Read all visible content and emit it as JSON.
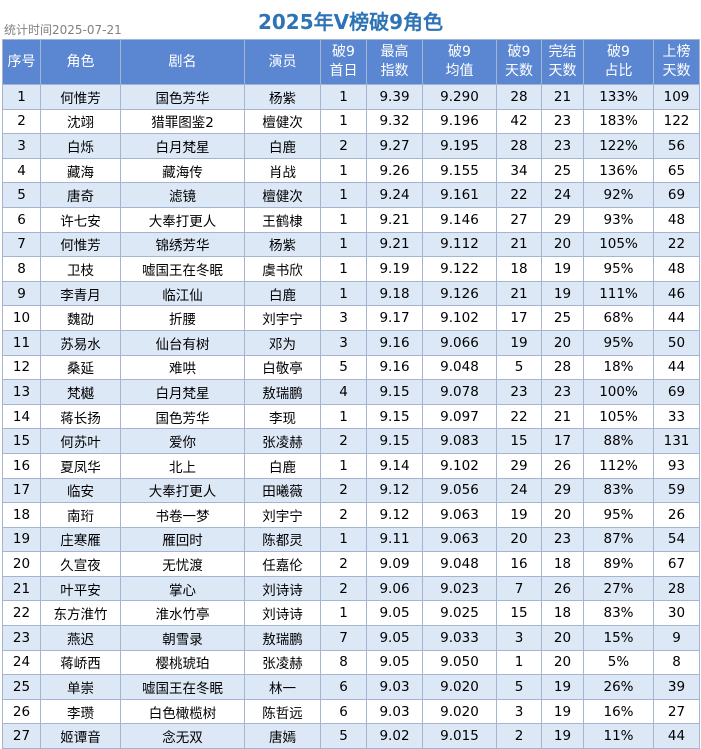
{
  "page_title": "2025年V榜破9角色",
  "stat_date": "统计时间2025-07-21",
  "colors": {
    "header_bg": "#5b87d2",
    "title": "#2e74b5",
    "odd_row": "#dde8f7",
    "border": "#a6b5cf"
  },
  "columns": [
    [
      "序号"
    ],
    [
      "角色"
    ],
    [
      "剧名"
    ],
    [
      "演员"
    ],
    [
      "破9",
      "首日"
    ],
    [
      "最高",
      "指数"
    ],
    [
      "破9",
      "均值"
    ],
    [
      "破9",
      "天数"
    ],
    [
      "完结",
      "天数"
    ],
    [
      "破9",
      "占比"
    ],
    [
      "上榜",
      "天数"
    ]
  ],
  "rows": [
    [
      "1",
      "何惟芳",
      "国色芳华",
      "杨紫",
      "1",
      "9.39",
      "9.290",
      "28",
      "21",
      "133%",
      "109"
    ],
    [
      "2",
      "沈翊",
      "猎罪图鉴2",
      "檀健次",
      "1",
      "9.32",
      "9.196",
      "42",
      "23",
      "183%",
      "122"
    ],
    [
      "3",
      "白烁",
      "白月梵星",
      "白鹿",
      "2",
      "9.27",
      "9.195",
      "28",
      "23",
      "122%",
      "56"
    ],
    [
      "4",
      "藏海",
      "藏海传",
      "肖战",
      "1",
      "9.26",
      "9.155",
      "34",
      "25",
      "136%",
      "65"
    ],
    [
      "5",
      "唐奇",
      "滤镜",
      "檀健次",
      "1",
      "9.24",
      "9.161",
      "22",
      "24",
      "92%",
      "69"
    ],
    [
      "6",
      "许七安",
      "大奉打更人",
      "王鹤棣",
      "1",
      "9.21",
      "9.146",
      "27",
      "29",
      "93%",
      "48"
    ],
    [
      "7",
      "何惟芳",
      "锦绣芳华",
      "杨紫",
      "1",
      "9.21",
      "9.112",
      "21",
      "20",
      "105%",
      "22"
    ],
    [
      "8",
      "卫枝",
      "嘘国王在冬眠",
      "虞书欣",
      "1",
      "9.19",
      "9.122",
      "18",
      "19",
      "95%",
      "48"
    ],
    [
      "9",
      "李青月",
      "临江仙",
      "白鹿",
      "1",
      "9.18",
      "9.126",
      "21",
      "19",
      "111%",
      "46"
    ],
    [
      "10",
      "魏劭",
      "折腰",
      "刘宇宁",
      "3",
      "9.17",
      "9.102",
      "17",
      "25",
      "68%",
      "44"
    ],
    [
      "11",
      "苏易水",
      "仙台有树",
      "邓为",
      "3",
      "9.16",
      "9.066",
      "19",
      "20",
      "95%",
      "50"
    ],
    [
      "12",
      "桑延",
      "难哄",
      "白敬亭",
      "5",
      "9.16",
      "9.048",
      "5",
      "28",
      "18%",
      "44"
    ],
    [
      "13",
      "梵樾",
      "白月梵星",
      "敖瑞鹏",
      "4",
      "9.15",
      "9.078",
      "23",
      "23",
      "100%",
      "69"
    ],
    [
      "14",
      "蒋长扬",
      "国色芳华",
      "李现",
      "1",
      "9.15",
      "9.097",
      "22",
      "21",
      "105%",
      "33"
    ],
    [
      "15",
      "何苏叶",
      "爱你",
      "张凌赫",
      "2",
      "9.15",
      "9.083",
      "15",
      "17",
      "88%",
      "131"
    ],
    [
      "16",
      "夏凤华",
      "北上",
      "白鹿",
      "1",
      "9.14",
      "9.102",
      "29",
      "26",
      "112%",
      "93"
    ],
    [
      "17",
      "临安",
      "大奉打更人",
      "田曦薇",
      "2",
      "9.12",
      "9.056",
      "24",
      "29",
      "83%",
      "59"
    ],
    [
      "18",
      "南珩",
      "书卷一梦",
      "刘宇宁",
      "2",
      "9.12",
      "9.063",
      "19",
      "20",
      "95%",
      "26"
    ],
    [
      "19",
      "庄寒雁",
      "雁回时",
      "陈都灵",
      "1",
      "9.11",
      "9.063",
      "20",
      "23",
      "87%",
      "54"
    ],
    [
      "20",
      "久宣夜",
      "无忧渡",
      "任嘉伦",
      "2",
      "9.09",
      "9.048",
      "16",
      "18",
      "89%",
      "67"
    ],
    [
      "21",
      "叶平安",
      "掌心",
      "刘诗诗",
      "2",
      "9.06",
      "9.023",
      "7",
      "26",
      "27%",
      "28"
    ],
    [
      "22",
      "东方淮竹",
      "淮水竹亭",
      "刘诗诗",
      "1",
      "9.05",
      "9.025",
      "15",
      "18",
      "83%",
      "30"
    ],
    [
      "23",
      "燕迟",
      "朝雪录",
      "敖瑞鹏",
      "7",
      "9.05",
      "9.033",
      "3",
      "20",
      "15%",
      "9"
    ],
    [
      "24",
      "蒋峤西",
      "樱桃琥珀",
      "张凌赫",
      "8",
      "9.05",
      "9.050",
      "1",
      "20",
      "5%",
      "8"
    ],
    [
      "25",
      "单崇",
      "嘘国王在冬眠",
      "林一",
      "6",
      "9.03",
      "9.020",
      "5",
      "19",
      "26%",
      "39"
    ],
    [
      "26",
      "李瓒",
      "白色橄榄树",
      "陈哲远",
      "6",
      "9.03",
      "9.020",
      "3",
      "19",
      "16%",
      "27"
    ],
    [
      "27",
      "姬谭音",
      "念无双",
      "唐嫣",
      "5",
      "9.02",
      "9.015",
      "2",
      "19",
      "11%",
      "44"
    ]
  ]
}
